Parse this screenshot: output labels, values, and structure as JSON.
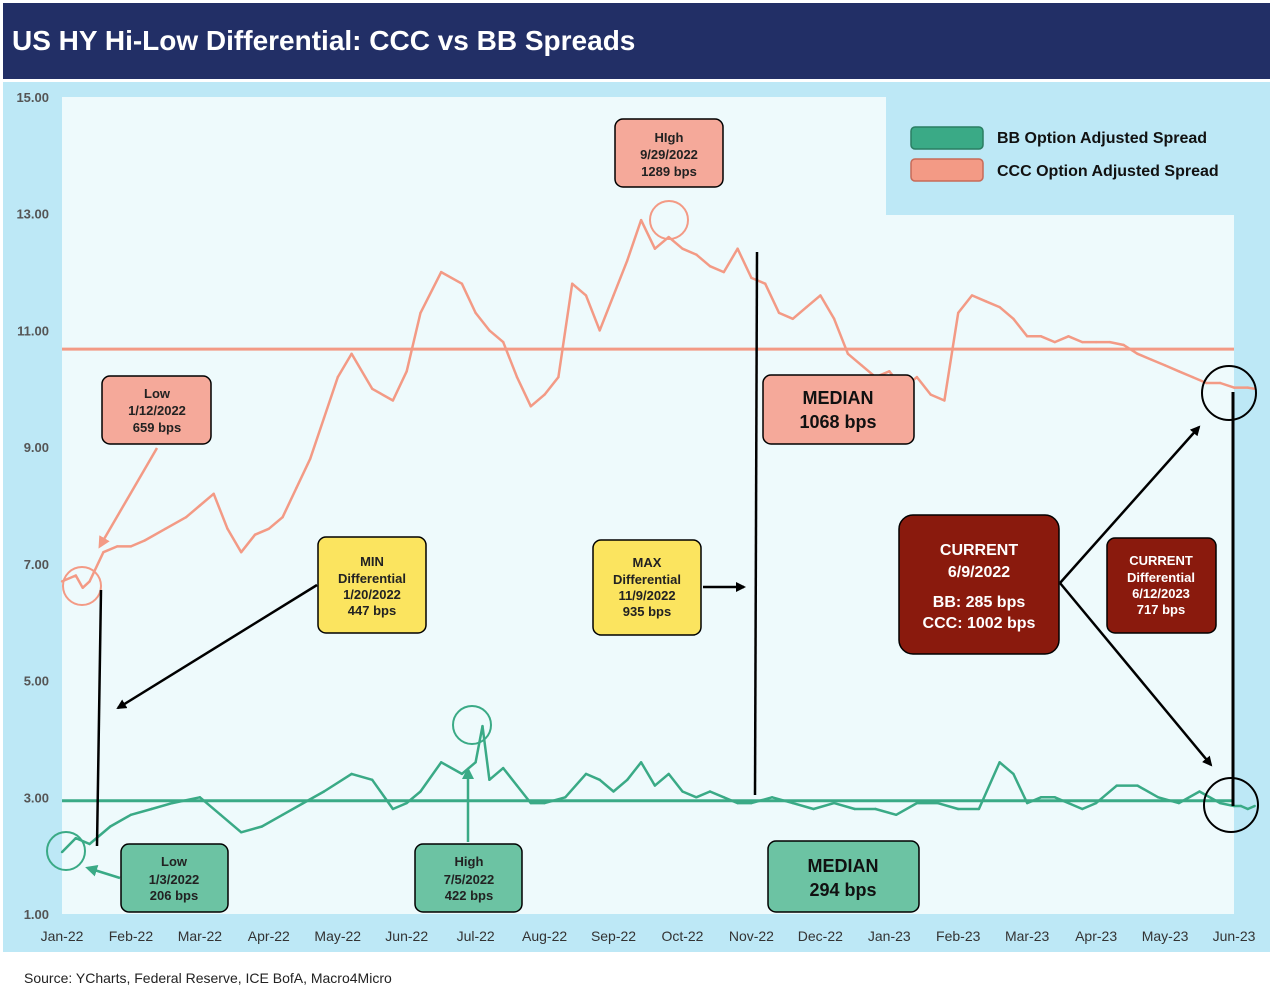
{
  "header": {
    "title": "US HY Hi-Low Differential: CCC vs BB Spreads"
  },
  "footer": {
    "source": "Source: YCharts, Federal Reserve, ICE BofA, Macro4Micro"
  },
  "colors": {
    "bb": "#3aaa86",
    "ccc": "#f39a85",
    "panel": "#bde8f6",
    "plot": "#eefafc"
  },
  "chart_data": {
    "type": "line",
    "title": "US HY Hi-Low Differential: CCC vs BB Spreads",
    "xlabel": "",
    "ylabel": "",
    "ylim": [
      1.0,
      15.0
    ],
    "y_ticks": [
      "1.00",
      "3.00",
      "5.00",
      "7.00",
      "9.00",
      "11.00",
      "13.00",
      "15.00"
    ],
    "x_ticks": [
      "Jan-22",
      "Feb-22",
      "Mar-22",
      "Apr-22",
      "May-22",
      "Jun-22",
      "Jul-22",
      "Aug-22",
      "Sep-22",
      "Oct-22",
      "Nov-22",
      "Dec-22",
      "Jan-23",
      "Feb-23",
      "Mar-23",
      "Apr-23",
      "May-23",
      "Jun-23"
    ],
    "legend_position": "top-right",
    "series": [
      {
        "name": "BB Option Adjusted Spread",
        "color": "#3aaa86",
        "x": [
          0,
          0.2,
          0.4,
          0.7,
          1.0,
          1.3,
          1.6,
          2.0,
          2.3,
          2.6,
          2.9,
          3.2,
          3.5,
          3.8,
          4.2,
          4.5,
          4.8,
          5.0,
          5.2,
          5.5,
          5.8,
          6.0,
          6.1,
          6.2,
          6.4,
          6.6,
          6.8,
          7.0,
          7.3,
          7.6,
          7.8,
          8.0,
          8.2,
          8.4,
          8.6,
          8.8,
          9.0,
          9.2,
          9.4,
          9.6,
          9.8,
          10.0,
          10.3,
          10.6,
          10.9,
          11.2,
          11.5,
          11.8,
          12.1,
          12.4,
          12.7,
          13.0,
          13.3,
          13.6,
          13.8,
          14.0,
          14.2,
          14.4,
          14.6,
          14.8,
          15.0,
          15.3,
          15.6,
          15.9,
          16.2,
          16.5,
          16.8,
          17.0,
          17.1,
          17.2,
          17.3
        ],
        "values": [
          2.06,
          2.3,
          2.2,
          2.5,
          2.7,
          2.8,
          2.9,
          3.0,
          2.7,
          2.4,
          2.5,
          2.7,
          2.9,
          3.1,
          3.4,
          3.3,
          2.8,
          2.9,
          3.1,
          3.6,
          3.4,
          3.6,
          4.22,
          3.3,
          3.5,
          3.2,
          2.9,
          2.9,
          3.0,
          3.4,
          3.3,
          3.1,
          3.3,
          3.6,
          3.2,
          3.4,
          3.1,
          3.0,
          3.1,
          3.0,
          2.9,
          2.9,
          3.0,
          2.9,
          2.8,
          2.9,
          2.8,
          2.8,
          2.7,
          2.9,
          2.9,
          2.8,
          2.8,
          3.6,
          3.4,
          2.9,
          3.0,
          3.0,
          2.9,
          2.8,
          2.9,
          3.2,
          3.2,
          3.0,
          2.9,
          3.1,
          2.9,
          2.85,
          2.85,
          2.8,
          2.85
        ]
      },
      {
        "name": "CCC Option Adjusted Spread",
        "color": "#f39a85",
        "x": [
          0,
          0.2,
          0.3,
          0.4,
          0.6,
          0.8,
          1.0,
          1.2,
          1.5,
          1.8,
          2.0,
          2.2,
          2.4,
          2.6,
          2.8,
          3.0,
          3.2,
          3.4,
          3.6,
          3.8,
          4.0,
          4.2,
          4.5,
          4.8,
          5.0,
          5.2,
          5.5,
          5.8,
          6.0,
          6.2,
          6.4,
          6.6,
          6.8,
          7.0,
          7.2,
          7.4,
          7.6,
          7.8,
          8.0,
          8.2,
          8.4,
          8.6,
          8.8,
          9.0,
          9.2,
          9.4,
          9.6,
          9.8,
          10.0,
          10.2,
          10.4,
          10.6,
          10.8,
          11.0,
          11.2,
          11.4,
          11.6,
          11.8,
          12.0,
          12.2,
          12.4,
          12.6,
          12.8,
          13.0,
          13.2,
          13.4,
          13.6,
          13.8,
          14.0,
          14.2,
          14.4,
          14.6,
          14.8,
          15.0,
          15.2,
          15.4,
          15.6,
          15.8,
          16.0,
          16.2,
          16.4,
          16.6,
          16.8,
          17.0,
          17.2,
          17.3
        ],
        "values": [
          6.7,
          6.8,
          6.59,
          6.7,
          7.2,
          7.3,
          7.3,
          7.4,
          7.6,
          7.8,
          8.0,
          8.2,
          7.6,
          7.2,
          7.5,
          7.6,
          7.8,
          8.3,
          8.8,
          9.5,
          10.2,
          10.6,
          10.0,
          9.8,
          10.3,
          11.3,
          12.0,
          11.8,
          11.3,
          11.0,
          10.8,
          10.2,
          9.7,
          9.9,
          10.2,
          11.8,
          11.6,
          11.0,
          11.6,
          12.2,
          12.89,
          12.4,
          12.6,
          12.4,
          12.3,
          12.1,
          12.0,
          12.4,
          11.9,
          11.8,
          11.3,
          11.2,
          11.4,
          11.6,
          11.2,
          10.6,
          10.4,
          10.2,
          10.3,
          10.0,
          10.2,
          9.9,
          9.8,
          11.3,
          11.6,
          11.5,
          11.4,
          11.2,
          10.9,
          10.9,
          10.8,
          10.9,
          10.8,
          10.8,
          10.8,
          10.75,
          10.6,
          10.5,
          10.4,
          10.3,
          10.2,
          10.1,
          10.1,
          10.02,
          10.02,
          10.0
        ]
      }
    ],
    "medians": [
      {
        "series": "BB Option Adjusted Spread",
        "value": 2.94
      },
      {
        "series": "CCC Option Adjusted Spread",
        "value": 10.68
      }
    ],
    "annotations": [
      {
        "id": "ccc-high",
        "lines": [
          "HIgh",
          "9/29/2022",
          "1289 bps"
        ]
      },
      {
        "id": "ccc-low",
        "lines": [
          "Low",
          "1/12/2022",
          "659 bps"
        ]
      },
      {
        "id": "ccc-median",
        "lines": [
          "MEDIAN",
          "1068 bps"
        ]
      },
      {
        "id": "min-diff",
        "lines": [
          "MIN",
          "Differential",
          "1/20/2022",
          "447 bps"
        ]
      },
      {
        "id": "max-diff",
        "lines": [
          "MAX",
          "Differential",
          "11/9/2022",
          "935 bps"
        ]
      },
      {
        "id": "current",
        "lines": [
          "CURRENT",
          "6/9/2022",
          "BB: 285 bps",
          "CCC: 1002 bps"
        ]
      },
      {
        "id": "current-diff",
        "lines": [
          "CURRENT",
          "Differential",
          "6/12/2023",
          "717 bps"
        ]
      },
      {
        "id": "bb-low",
        "lines": [
          "Low",
          "1/3/2022",
          "206 bps"
        ]
      },
      {
        "id": "bb-high",
        "lines": [
          "High",
          "7/5/2022",
          "422 bps"
        ]
      },
      {
        "id": "bb-median",
        "lines": [
          "MEDIAN",
          "294 bps"
        ]
      }
    ]
  }
}
